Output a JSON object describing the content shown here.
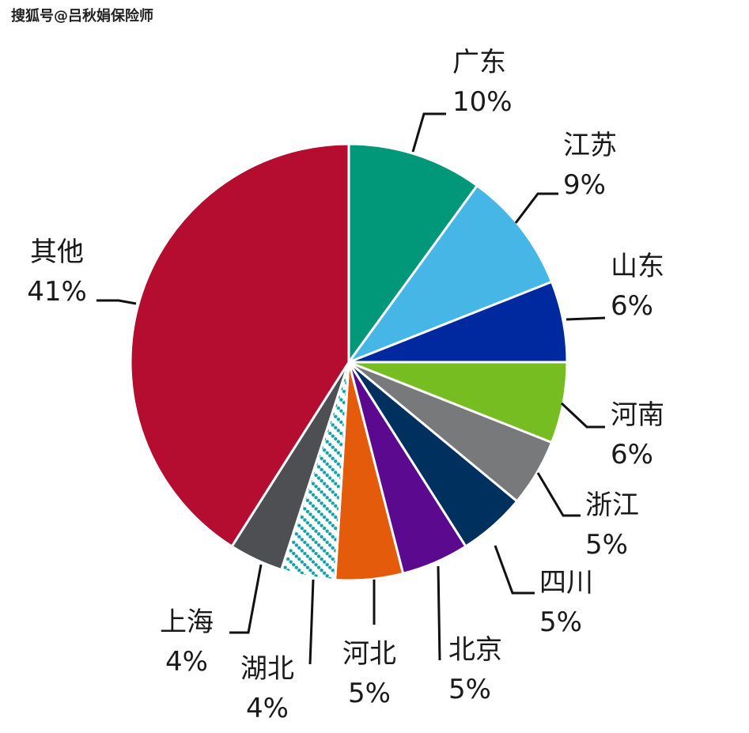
{
  "watermark": "搜狐号@吕秋娟保险师",
  "chart_data": {
    "type": "pie",
    "start_angle_deg": 0,
    "direction": "clockwise",
    "slices": [
      {
        "name": "广东",
        "value": 10,
        "label": "10%",
        "color": "#009878"
      },
      {
        "name": "江苏",
        "value": 9,
        "label": "9%",
        "color": "#45b6e6"
      },
      {
        "name": "山东",
        "value": 6,
        "label": "6%",
        "color": "#0029a0"
      },
      {
        "name": "河南",
        "value": 6,
        "label": "6%",
        "color": "#76bd22"
      },
      {
        "name": "浙江",
        "value": 5,
        "label": "5%",
        "color": "#77797b"
      },
      {
        "name": "四川",
        "value": 5,
        "label": "5%",
        "color": "#00305e"
      },
      {
        "name": "北京",
        "value": 5,
        "label": "5%",
        "color": "#5b0a8f"
      },
      {
        "name": "河北",
        "value": 5,
        "label": "5%",
        "color": "#e55b0c"
      },
      {
        "name": "湖北",
        "value": 4,
        "label": "4%",
        "color": "#17a0a8",
        "pattern": "dotted-diagonal"
      },
      {
        "name": "上海",
        "value": 4,
        "label": "4%",
        "color": "#4d4f53"
      },
      {
        "name": "其他",
        "value": 41,
        "label": "41%",
        "color": "#b50d30"
      }
    ]
  }
}
